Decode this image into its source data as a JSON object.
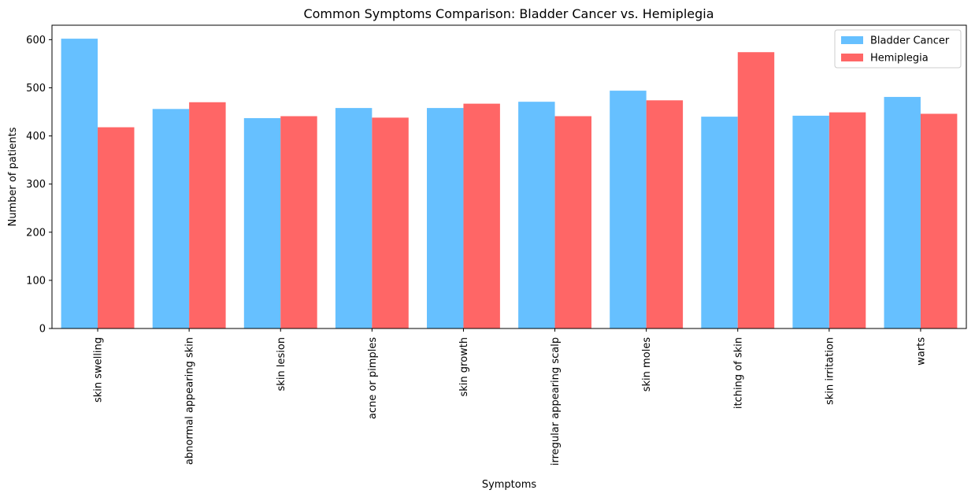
{
  "chart_data": {
    "type": "bar",
    "title": "Common Symptoms Comparison: Bladder Cancer vs. Hemiplegia",
    "xlabel": "Symptoms",
    "ylabel": "Number of patients",
    "ylim": [
      0,
      630
    ],
    "yticks": [
      0,
      100,
      200,
      300,
      400,
      500,
      600
    ],
    "categories": [
      "skin swelling",
      "abnormal appearing skin",
      "skin lesion",
      "acne or pimples",
      "skin growth",
      "irregular appearing scalp",
      "skin moles",
      "itching of skin",
      "skin irritation",
      "warts"
    ],
    "series": [
      {
        "name": "Bladder Cancer",
        "color": "#66c0ff",
        "values": [
          602,
          456,
          437,
          458,
          458,
          471,
          494,
          440,
          442,
          481
        ]
      },
      {
        "name": "Hemiplegia",
        "color": "#ff6666",
        "values": [
          418,
          470,
          441,
          438,
          467,
          441,
          474,
          574,
          449,
          446
        ]
      }
    ],
    "legend_position": "top-right",
    "grid": false
  }
}
